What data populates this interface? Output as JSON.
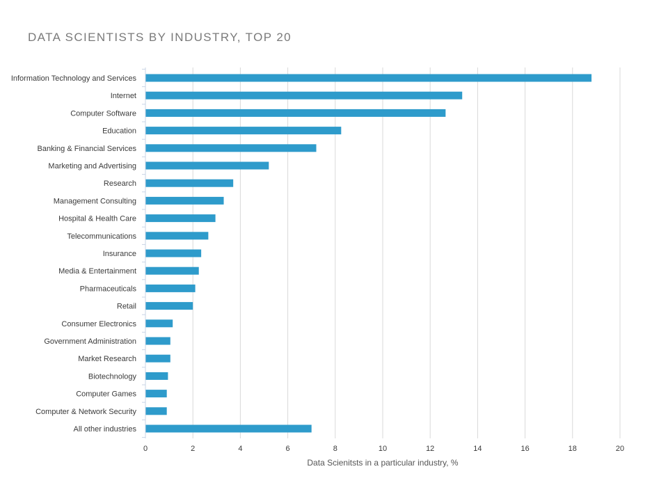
{
  "chart_data": {
    "type": "bar",
    "orientation": "horizontal",
    "title": "DATA SCIENTISTS BY INDUSTRY, TOP 20",
    "xlabel": "Data Scienitsts in a particular industry, %",
    "ylabel": "",
    "xlim": [
      0,
      20
    ],
    "xticks": [
      0,
      2,
      4,
      6,
      8,
      10,
      12,
      14,
      16,
      18,
      20
    ],
    "grid": "vertical",
    "bar_color": "#2e9bcb",
    "categories": [
      "Information Technology and Services",
      "Internet",
      "Computer Software",
      "Education",
      "Banking & Financial Services",
      "Marketing and Advertising",
      "Research",
      "Management Consulting",
      "Hospital & Health Care",
      "Telecommunications",
      "Insurance",
      "Media & Entertainment",
      "Pharmaceuticals",
      "Retail",
      "Consumer Electronics",
      "Government Administration",
      "Market Research",
      "Biotechnology",
      "Computer Games",
      "Computer & Network Security",
      "All other industries"
    ],
    "values": [
      18.8,
      13.35,
      12.65,
      8.25,
      7.2,
      5.2,
      3.7,
      3.3,
      2.95,
      2.65,
      2.35,
      2.25,
      2.1,
      2.0,
      1.15,
      1.05,
      1.05,
      0.95,
      0.9,
      0.9,
      7.0
    ]
  }
}
